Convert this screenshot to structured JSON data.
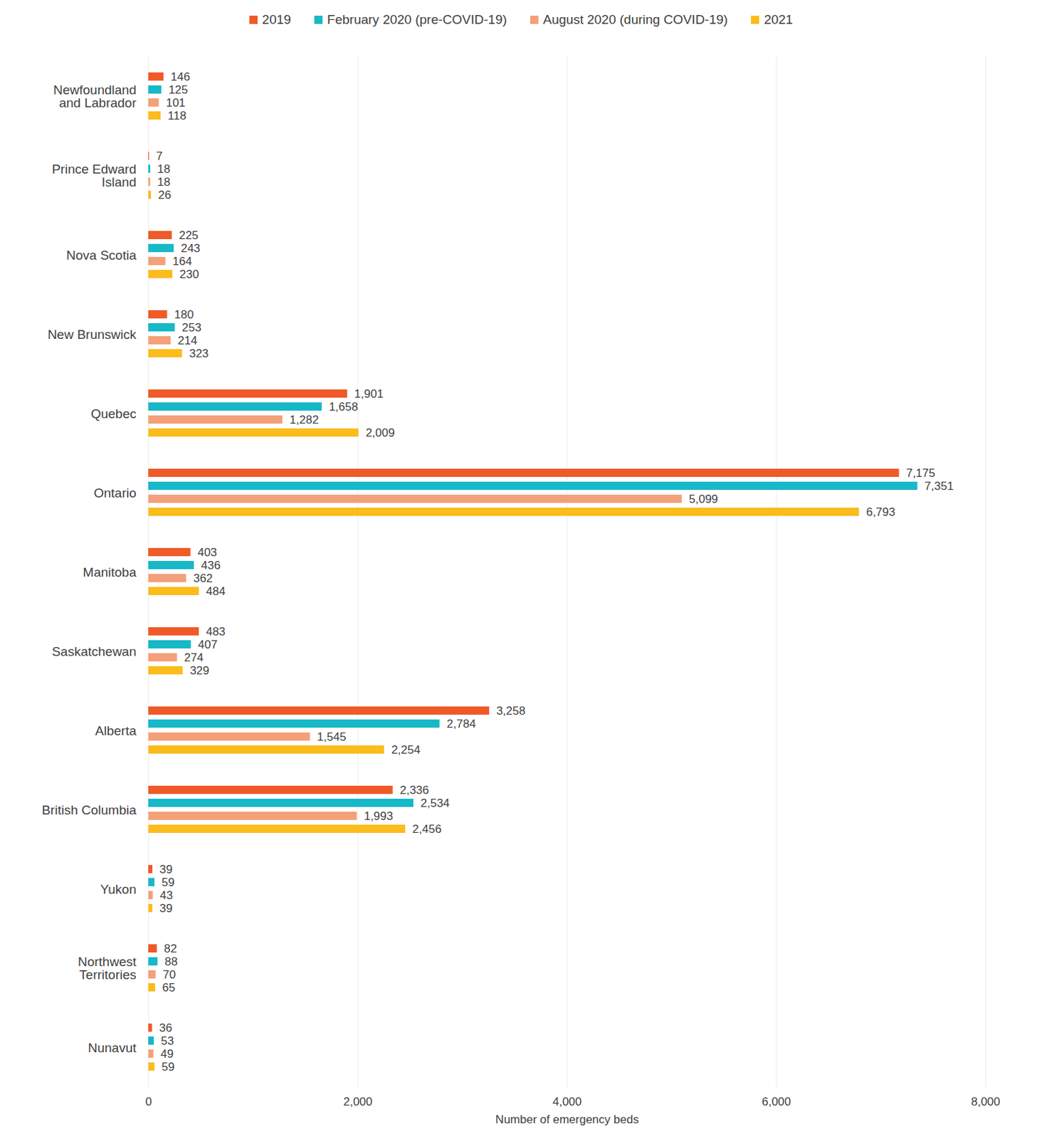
{
  "chart_data": {
    "type": "bar",
    "orientation": "horizontal",
    "categories": [
      "Newfoundland and Labrador",
      "Prince Edward Island",
      "Nova Scotia",
      "New Brunswick",
      "Quebec",
      "Ontario",
      "Manitoba",
      "Saskatchewan",
      "Alberta",
      "British Columbia",
      "Yukon",
      "Northwest Territories",
      "Nunavut"
    ],
    "series": [
      {
        "name": "2019",
        "color": "#f05a28",
        "values": [
          146,
          7,
          225,
          180,
          1901,
          7175,
          403,
          483,
          3258,
          2336,
          39,
          82,
          36
        ],
        "value_labels": [
          "146",
          "7",
          "225",
          "180",
          "1,901",
          "7,175",
          "403",
          "483",
          "3,258",
          "2,336",
          "39",
          "82",
          "36"
        ]
      },
      {
        "name": "February 2020 (pre-COVID-19)",
        "color": "#17b8c8",
        "values": [
          125,
          18,
          243,
          253,
          1658,
          7351,
          436,
          407,
          2784,
          2534,
          59,
          88,
          53
        ],
        "value_labels": [
          "125",
          "18",
          "243",
          "253",
          "1,658",
          "7,351",
          "436",
          "407",
          "2,784",
          "2,534",
          "59",
          "88",
          "53"
        ]
      },
      {
        "name": "August 2020 (during COVID-19)",
        "color": "#f4a07a",
        "values": [
          101,
          18,
          164,
          214,
          1282,
          5099,
          362,
          274,
          1545,
          1993,
          43,
          70,
          49
        ],
        "value_labels": [
          "101",
          "18",
          "164",
          "214",
          "1,282",
          "5,099",
          "362",
          "274",
          "1,545",
          "1,993",
          "43",
          "70",
          "49"
        ]
      },
      {
        "name": "2021",
        "color": "#fbbc1c",
        "values": [
          118,
          26,
          230,
          323,
          2009,
          6793,
          484,
          329,
          2254,
          2456,
          39,
          65,
          59
        ],
        "value_labels": [
          "118",
          "26",
          "230",
          "323",
          "2,009",
          "6,793",
          "484",
          "329",
          "2,254",
          "2,456",
          "39",
          "65",
          "59"
        ]
      }
    ],
    "xlabel": "Number of emergency beds",
    "xlim": [
      0,
      8000
    ],
    "xticks": [
      0,
      {
        "value": 2000,
        "label": "2,000"
      },
      {
        "value": 4000,
        "label": "4,000"
      },
      {
        "value": 6000,
        "label": "6,000"
      },
      {
        "value": 8000,
        "label": "8,000"
      }
    ],
    "grid": true,
    "data_labels": true,
    "legend": "top"
  }
}
